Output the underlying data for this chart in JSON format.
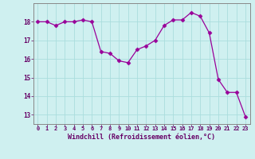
{
  "x": [
    0,
    1,
    2,
    3,
    4,
    5,
    6,
    7,
    8,
    9,
    10,
    11,
    12,
    13,
    14,
    15,
    16,
    17,
    18,
    19,
    20,
    21,
    22,
    23
  ],
  "y": [
    18.0,
    18.0,
    17.8,
    18.0,
    18.0,
    18.1,
    18.0,
    16.4,
    16.3,
    15.9,
    15.8,
    16.5,
    16.7,
    17.0,
    17.8,
    18.1,
    18.1,
    18.5,
    18.3,
    17.4,
    14.9,
    14.2,
    14.2,
    12.9
  ],
  "line_color": "#990099",
  "marker": "D",
  "marker_size": 2.5,
  "bg_color": "#cff0f0",
  "grid_color": "#aadddd",
  "xlabel": "Windchill (Refroidissement éolien,°C)",
  "xlabel_color": "#660066",
  "tick_color": "#660066",
  "spine_color": "#888888",
  "ylim": [
    12.5,
    19.0
  ],
  "yticks": [
    13,
    14,
    15,
    16,
    17,
    18
  ],
  "xlim": [
    -0.5,
    23.5
  ],
  "xticks": [
    0,
    1,
    2,
    3,
    4,
    5,
    6,
    7,
    8,
    9,
    10,
    11,
    12,
    13,
    14,
    15,
    16,
    17,
    18,
    19,
    20,
    21,
    22,
    23
  ]
}
